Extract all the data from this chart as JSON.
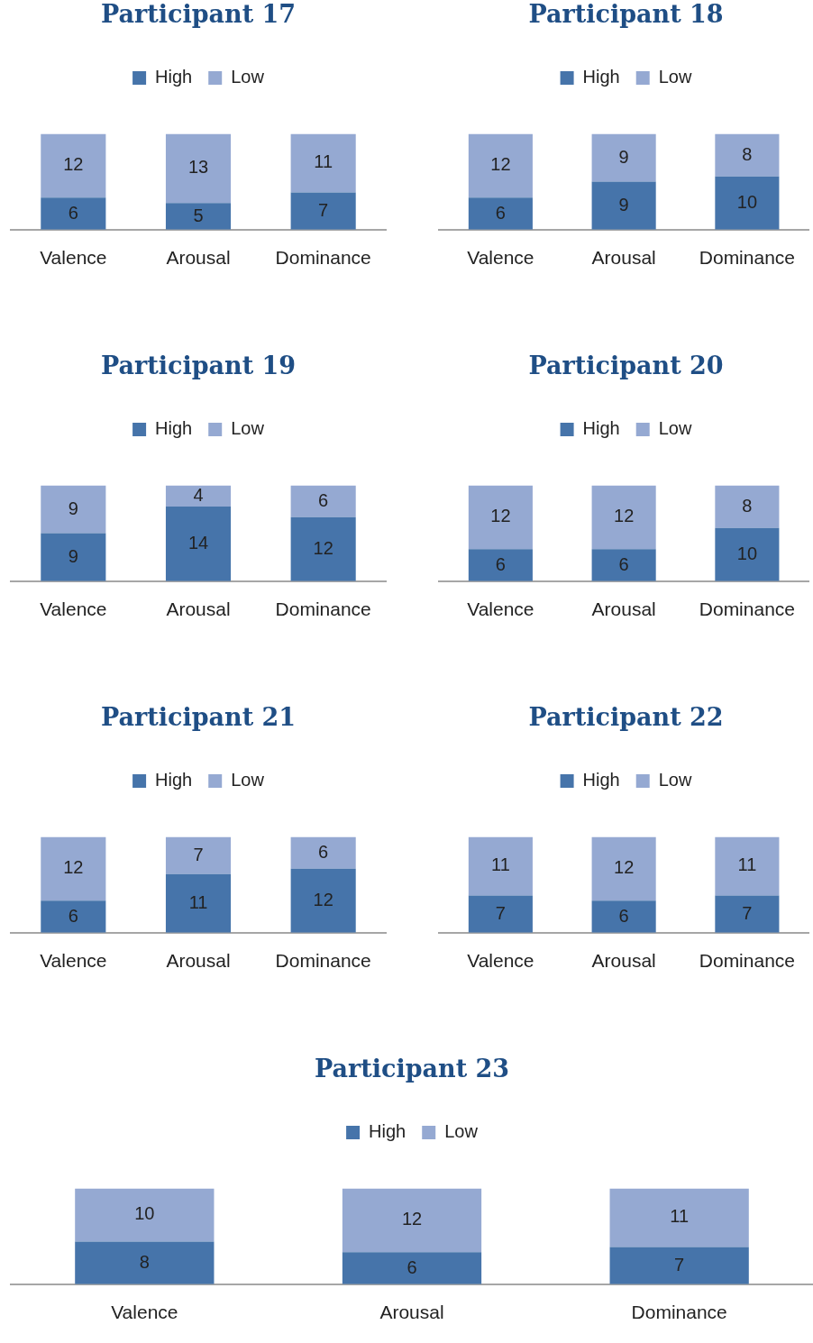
{
  "chart_data": [
    {
      "type": "bar",
      "title": "Participant 17",
      "categories": [
        "Valence",
        "Arousal",
        "Dominance"
      ],
      "stacked": true,
      "data_labels": true,
      "legend": "top",
      "tick_labels": "x",
      "series": [
        {
          "name": "High",
          "color": "#4674aa",
          "values": [
            6,
            5,
            7
          ]
        },
        {
          "name": "Low",
          "color": "#95a9d2",
          "values": [
            12,
            13,
            11
          ]
        }
      ]
    },
    {
      "type": "bar",
      "title": "Participant 18",
      "categories": [
        "Valence",
        "Arousal",
        "Dominance"
      ],
      "stacked": true,
      "data_labels": true,
      "legend": "top",
      "tick_labels": "x",
      "series": [
        {
          "name": "High",
          "color": "#4674aa",
          "values": [
            6,
            9,
            10
          ]
        },
        {
          "name": "Low",
          "color": "#95a9d2",
          "values": [
            12,
            9,
            8
          ]
        }
      ]
    },
    {
      "type": "bar",
      "title": "Participant 19",
      "categories": [
        "Valence",
        "Arousal",
        "Dominance"
      ],
      "stacked": true,
      "data_labels": true,
      "legend": "top",
      "tick_labels": "x",
      "series": [
        {
          "name": "High",
          "color": "#4674aa",
          "values": [
            9,
            14,
            12
          ]
        },
        {
          "name": "Low",
          "color": "#95a9d2",
          "values": [
            9,
            4,
            6
          ]
        }
      ]
    },
    {
      "type": "bar",
      "title": "Participant 20",
      "categories": [
        "Valence",
        "Arousal",
        "Dominance"
      ],
      "stacked": true,
      "data_labels": true,
      "legend": "top",
      "tick_labels": "x",
      "series": [
        {
          "name": "High",
          "color": "#4674aa",
          "values": [
            6,
            6,
            10
          ]
        },
        {
          "name": "Low",
          "color": "#95a9d2",
          "values": [
            12,
            12,
            8
          ]
        }
      ]
    },
    {
      "type": "bar",
      "title": "Participant 21",
      "categories": [
        "Valence",
        "Arousal",
        "Dominance"
      ],
      "stacked": true,
      "data_labels": true,
      "legend": "top",
      "tick_labels": "x",
      "series": [
        {
          "name": "High",
          "color": "#4674aa",
          "values": [
            6,
            11,
            12
          ]
        },
        {
          "name": "Low",
          "color": "#95a9d2",
          "values": [
            12,
            7,
            6
          ]
        }
      ]
    },
    {
      "type": "bar",
      "title": "Participant 22",
      "categories": [
        "Valence",
        "Arousal",
        "Dominance"
      ],
      "stacked": true,
      "data_labels": true,
      "legend": "top",
      "tick_labels": "x",
      "series": [
        {
          "name": "High",
          "color": "#4674aa",
          "values": [
            7,
            6,
            7
          ]
        },
        {
          "name": "Low",
          "color": "#95a9d2",
          "values": [
            11,
            12,
            11
          ]
        }
      ]
    },
    {
      "type": "bar",
      "title": "Participant 23",
      "categories": [
        "Valence",
        "Arousal",
        "Dominance"
      ],
      "stacked": true,
      "data_labels": true,
      "legend": "top",
      "tick_labels": "x",
      "series": [
        {
          "name": "High",
          "color": "#4674aa",
          "values": [
            8,
            6,
            7
          ]
        },
        {
          "name": "Low",
          "color": "#95a9d2",
          "values": [
            10,
            12,
            11
          ]
        }
      ]
    }
  ]
}
